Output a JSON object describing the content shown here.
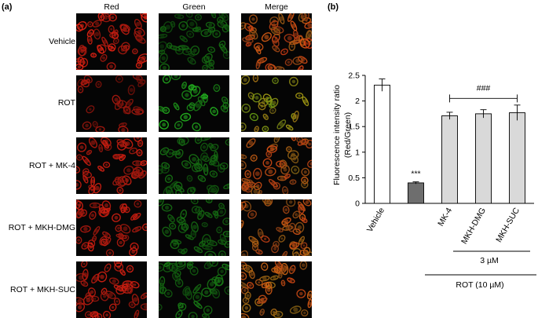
{
  "panel_a": {
    "label": "(a)",
    "columns": [
      "Red",
      "Green",
      "Merge"
    ],
    "rows": [
      "Vehicle",
      "ROT",
      "ROT + MK-4",
      "ROT + MKH-DMG",
      "ROT + MKH-SUC"
    ]
  },
  "panel_b": {
    "label": "(b)",
    "group_label_inner": "3 µM",
    "group_label_outer": "ROT (10 µM)"
  },
  "colors": {
    "bar_white": "#ffffff",
    "bar_dark": "#6e6e6e",
    "bar_light": "#d9d9d9",
    "red_channel": "#e8261b",
    "green_channel": "#3fbf2a"
  },
  "chart_data": {
    "type": "bar",
    "categories": [
      "Vehicle",
      "",
      "MK-4",
      "MKH-DMG",
      "MKH-SUC"
    ],
    "values": [
      2.31,
      0.4,
      1.71,
      1.75,
      1.77
    ],
    "errors": [
      0.12,
      0.02,
      0.07,
      0.08,
      0.15
    ],
    "bar_colors": [
      "#ffffff",
      "#6e6e6e",
      "#d9d9d9",
      "#d9d9d9",
      "#d9d9d9"
    ],
    "ylabel": "Fluorescence intensity ratio\n(Red/Green)",
    "ylabel_line1": "Fluorescence intensity ratio",
    "ylabel_line2": "(Red/Green)",
    "ylim": [
      0,
      2.5
    ],
    "yticks": [
      "0",
      "0.5",
      "1",
      "1.5",
      "2",
      "2.5"
    ],
    "annotations": [
      {
        "text": "***",
        "category_index": 1
      },
      {
        "text": "###",
        "category_span": [
          2,
          4
        ]
      }
    ],
    "grid": false
  }
}
